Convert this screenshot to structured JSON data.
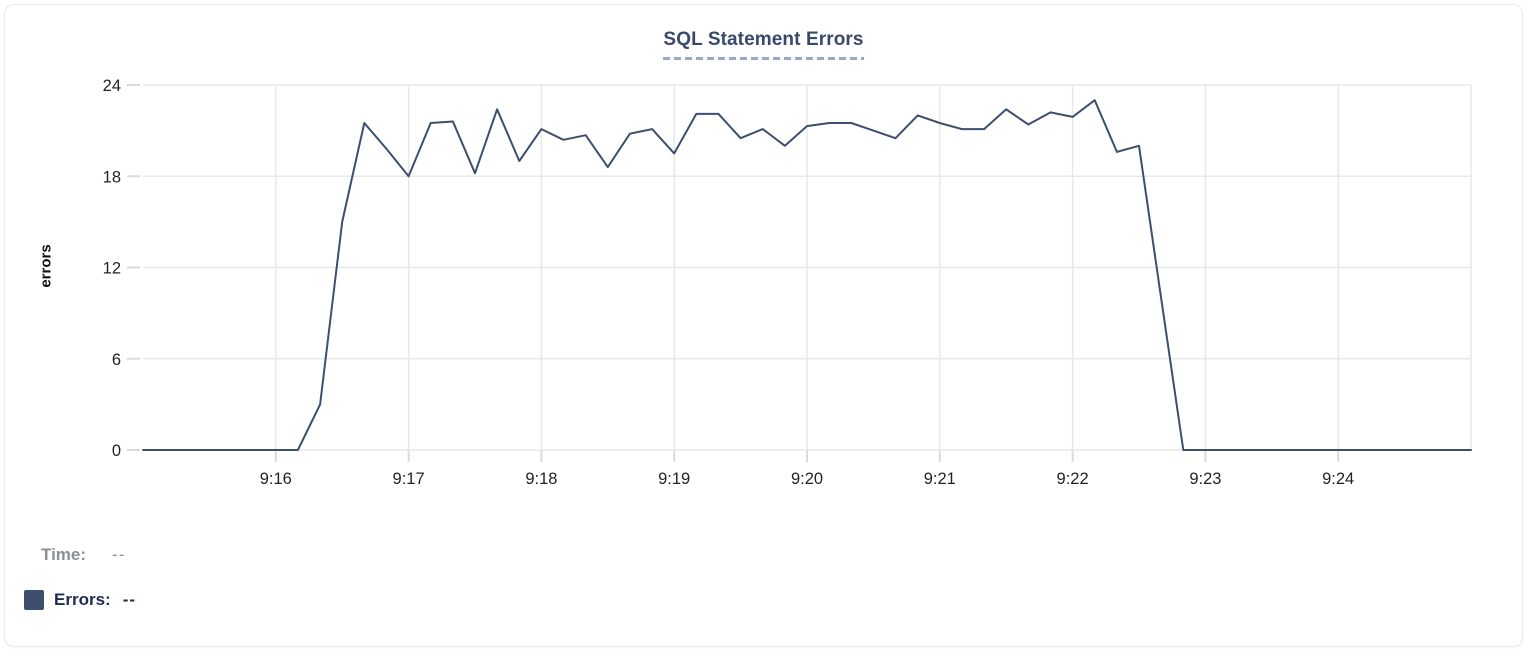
{
  "card": {
    "title": "SQL Statement Errors"
  },
  "tooltip_legend": {
    "time_label": "Time:",
    "time_value": "--",
    "errors_label": "Errors:",
    "errors_value": "--"
  },
  "colors": {
    "line": "#3e4e6e",
    "swatch": "#3e4e6e",
    "title": "#39496b",
    "title_underline": "#9aa7c8",
    "grid": "#e8e8e8",
    "tick": "#d9dadc",
    "axis_text": "#1f2124",
    "muted_text": "#8a8f98",
    "legend_text": "#1d2b55"
  },
  "chart_data": {
    "type": "line",
    "title": "SQL Statement Errors",
    "xlabel": "",
    "ylabel": "errors",
    "ylim": [
      0,
      24
    ],
    "yticks": [
      0,
      6,
      12,
      18,
      24
    ],
    "xlim": [
      "9:15:00",
      "9:25:00"
    ],
    "interval_seconds": 10,
    "xtick_labels": [
      "9:16",
      "9:17",
      "9:18",
      "9:19",
      "9:20",
      "9:21",
      "9:22",
      "9:23",
      "9:24"
    ],
    "grid": true,
    "legend_position": "bottom-left",
    "series": [
      {
        "name": "Errors",
        "color": "#3e4e6e",
        "start_time": "9:15:00",
        "values": [
          0,
          0,
          0,
          0,
          0,
          0,
          0,
          0,
          3,
          15,
          21.5,
          19.8,
          18,
          21.5,
          21.6,
          18.2,
          22.4,
          19,
          21.1,
          20.4,
          20.7,
          18.6,
          20.8,
          21.1,
          19.5,
          22.1,
          22.1,
          20.5,
          21.1,
          20,
          21.3,
          21.5,
          21.5,
          21,
          20.5,
          22,
          21.5,
          21.1,
          21.1,
          22.4,
          21.4,
          22.2,
          21.9,
          23,
          19.6,
          20,
          10,
          0,
          0,
          0,
          0,
          0,
          0,
          0,
          0,
          0,
          0,
          0,
          0,
          0,
          0
        ]
      }
    ]
  }
}
